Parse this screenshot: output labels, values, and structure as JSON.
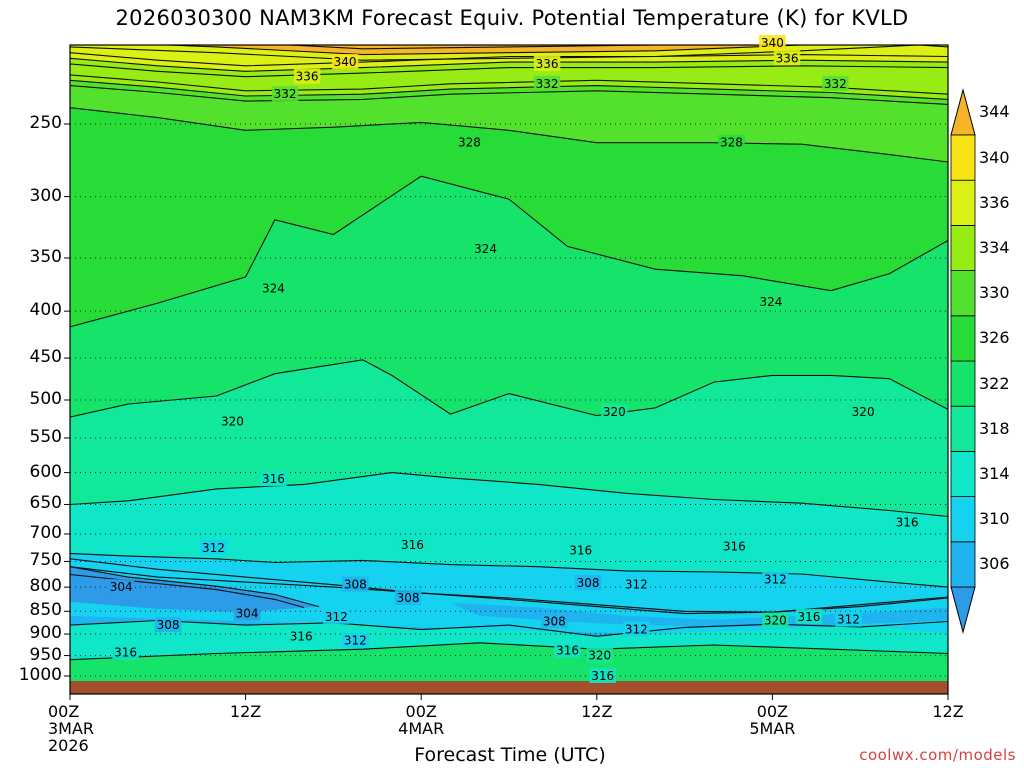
{
  "title": "2026030300 NAM3KM Forecast Equiv. Potential Temperature (K) for KVLD",
  "credit": "coolwx.com/models",
  "chart_data": {
    "type": "heatmap",
    "title": "2026030300 NAM3KM Forecast Equiv. Potential Temperature (K) for KVLD",
    "xlabel": "Forecast Time (UTC)",
    "ylabel": "",
    "x_ticks": [
      {
        "hour": 0,
        "label": "00Z",
        "sub1": "3MAR",
        "sub2": "2026"
      },
      {
        "hour": 12,
        "label": "12Z",
        "sub1": "",
        "sub2": ""
      },
      {
        "hour": 24,
        "label": "00Z",
        "sub1": "4MAR",
        "sub2": ""
      },
      {
        "hour": 36,
        "label": "12Z",
        "sub1": "",
        "sub2": ""
      },
      {
        "hour": 48,
        "label": "00Z",
        "sub1": "5MAR",
        "sub2": ""
      },
      {
        "hour": 60,
        "label": "12Z",
        "sub1": "",
        "sub2": ""
      }
    ],
    "x_range_hours": [
      0,
      60
    ],
    "y_ticks": [
      250,
      300,
      350,
      400,
      450,
      500,
      550,
      600,
      650,
      700,
      750,
      800,
      850,
      900,
      950,
      1000
    ],
    "y_range_hPa": [
      200,
      1025
    ],
    "y_scale": "log-pressure",
    "grid": "dotted horizontal at pressure ticks",
    "colorbar": {
      "ticks": [
        306,
        310,
        314,
        318,
        322,
        326,
        330,
        334,
        336,
        340,
        344
      ],
      "levels": [
        {
          "value": 304,
          "color": "#2d9be8"
        },
        {
          "value": 306,
          "color": "#1fb4ef"
        },
        {
          "value": 310,
          "color": "#14d2f0"
        },
        {
          "value": 314,
          "color": "#10e6c8"
        },
        {
          "value": 318,
          "color": "#12e89a"
        },
        {
          "value": 322,
          "color": "#16e46a"
        },
        {
          "value": 326,
          "color": "#28dc38"
        },
        {
          "value": 330,
          "color": "#52e22e"
        },
        {
          "value": 334,
          "color": "#98ec16"
        },
        {
          "value": 336,
          "color": "#dcf016"
        },
        {
          "value": 340,
          "color": "#f8e416"
        },
        {
          "value": 344,
          "color": "#f6b428"
        }
      ]
    },
    "contours": [
      {
        "value": 340,
        "p": [
          [
            0,
            203
          ],
          [
            10,
            206
          ],
          [
            20,
            210
          ],
          [
            30,
            209
          ],
          [
            40,
            208
          ],
          [
            50,
            205
          ],
          [
            58,
            202
          ],
          [
            60,
            203
          ]
        ]
      },
      {
        "value": 336,
        "p": [
          [
            0,
            212
          ],
          [
            6,
            216
          ],
          [
            12,
            219
          ],
          [
            20,
            217
          ],
          [
            30,
            214
          ],
          [
            40,
            214
          ],
          [
            50,
            213
          ],
          [
            60,
            214
          ]
        ]
      },
      {
        "value": 332,
        "p": [
          [
            0,
            224
          ],
          [
            6,
            228
          ],
          [
            12,
            233
          ],
          [
            20,
            232
          ],
          [
            26,
            229
          ],
          [
            36,
            227
          ],
          [
            44,
            229
          ],
          [
            52,
            231
          ],
          [
            60,
            235
          ]
        ]
      },
      {
        "value": 328,
        "p": [
          [
            0,
            240
          ],
          [
            6,
            246
          ],
          [
            12,
            254
          ],
          [
            18,
            252
          ],
          [
            24,
            249
          ],
          [
            30,
            254
          ],
          [
            36,
            262
          ],
          [
            44,
            262
          ],
          [
            50,
            263
          ],
          [
            56,
            270
          ],
          [
            60,
            275
          ]
        ]
      },
      {
        "value": 324,
        "p": [
          [
            0,
            416
          ],
          [
            6,
            392
          ],
          [
            12,
            367
          ],
          [
            14,
            318
          ],
          [
            18,
            330
          ],
          [
            24,
            285
          ],
          [
            30,
            302
          ],
          [
            34,
            340
          ],
          [
            40,
            360
          ],
          [
            46,
            366
          ],
          [
            52,
            380
          ],
          [
            56,
            364
          ],
          [
            60,
            335
          ]
        ]
      },
      {
        "value": 320,
        "p": [
          [
            0,
            522
          ],
          [
            4,
            505
          ],
          [
            10,
            495
          ],
          [
            14,
            468
          ],
          [
            20,
            452
          ],
          [
            22,
            470
          ],
          [
            26,
            518
          ],
          [
            30,
            492
          ],
          [
            36,
            520
          ],
          [
            40,
            510
          ],
          [
            44,
            478
          ],
          [
            48,
            470
          ],
          [
            52,
            470
          ],
          [
            56,
            474
          ],
          [
            60,
            512
          ]
        ]
      },
      {
        "value": 316,
        "p": [
          [
            0,
            650
          ],
          [
            4,
            644
          ],
          [
            10,
            625
          ],
          [
            16,
            618
          ],
          [
            22,
            600
          ],
          [
            26,
            608
          ],
          [
            32,
            618
          ],
          [
            38,
            632
          ],
          [
            44,
            642
          ],
          [
            50,
            648
          ],
          [
            56,
            660
          ],
          [
            60,
            670
          ]
        ]
      },
      {
        "value": 312,
        "p": [
          [
            0,
            735
          ],
          [
            4,
            740
          ],
          [
            10,
            745
          ],
          [
            14,
            752
          ],
          [
            20,
            748
          ],
          [
            26,
            756
          ],
          [
            32,
            760
          ],
          [
            38,
            768
          ],
          [
            44,
            770
          ],
          [
            50,
            774
          ],
          [
            56,
            790
          ],
          [
            60,
            800
          ]
        ]
      },
      {
        "value": 308,
        "p": [
          [
            0,
            760
          ],
          [
            6,
            780
          ],
          [
            12,
            790
          ],
          [
            18,
            800
          ],
          [
            24,
            812
          ],
          [
            30,
            822
          ],
          [
            36,
            836
          ],
          [
            42,
            850
          ],
          [
            48,
            852
          ],
          [
            54,
            836
          ],
          [
            60,
            820
          ]
        ]
      },
      {
        "value": 304,
        "p": [
          [
            0,
            775
          ],
          [
            5,
            790
          ],
          [
            10,
            805
          ],
          [
            14,
            825
          ],
          [
            16,
            842
          ]
        ]
      }
    ],
    "contour_labels": [
      {
        "value": 340,
        "x": 18.8,
        "p": 214
      },
      {
        "value": 340,
        "x": 48,
        "p": 204
      },
      {
        "value": 336,
        "x": 16.2,
        "p": 222
      },
      {
        "value": 336,
        "x": 32.6,
        "p": 215
      },
      {
        "value": 336,
        "x": 49,
        "p": 212
      },
      {
        "value": 332,
        "x": 14.7,
        "p": 232
      },
      {
        "value": 332,
        "x": 32.6,
        "p": 226
      },
      {
        "value": 332,
        "x": 52.3,
        "p": 226
      },
      {
        "value": 328,
        "x": 27.3,
        "p": 262
      },
      {
        "value": 328,
        "x": 45.2,
        "p": 262
      },
      {
        "value": 324,
        "x": 28.4,
        "p": 342
      },
      {
        "value": 324,
        "x": 13.9,
        "p": 378
      },
      {
        "value": 324,
        "x": 47.9,
        "p": 391
      },
      {
        "value": 320,
        "x": 11.1,
        "p": 528
      },
      {
        "value": 320,
        "x": 37.2,
        "p": 515
      },
      {
        "value": 320,
        "x": 54.2,
        "p": 515
      },
      {
        "value": 316,
        "x": 13.9,
        "p": 610
      },
      {
        "value": 316,
        "x": 57.2,
        "p": 680
      },
      {
        "value": 316,
        "x": 23.4,
        "p": 720
      },
      {
        "value": 316,
        "x": 34.9,
        "p": 730
      },
      {
        "value": 316,
        "x": 45.4,
        "p": 722
      },
      {
        "value": 312,
        "x": 9.8,
        "p": 725
      },
      {
        "value": 312,
        "x": 38.7,
        "p": 795
      },
      {
        "value": 312,
        "x": 48.2,
        "p": 785
      },
      {
        "value": 308,
        "x": 19.5,
        "p": 795
      },
      {
        "value": 308,
        "x": 23.1,
        "p": 822
      },
      {
        "value": 308,
        "x": 35.4,
        "p": 792
      },
      {
        "value": 304,
        "x": 3.5,
        "p": 800
      },
      {
        "value": 304,
        "x": 12.1,
        "p": 855
      },
      {
        "value": 312,
        "x": 18.2,
        "p": 862
      },
      {
        "value": 308,
        "x": 6.7,
        "p": 880
      },
      {
        "value": 316,
        "x": 15.8,
        "p": 905
      },
      {
        "value": 312,
        "x": 19.5,
        "p": 915
      },
      {
        "value": 308,
        "x": 33.1,
        "p": 872
      },
      {
        "value": 312,
        "x": 38.7,
        "p": 890
      },
      {
        "value": 320,
        "x": 48.2,
        "p": 870
      },
      {
        "value": 316,
        "x": 50.5,
        "p": 862
      },
      {
        "value": 312,
        "x": 53.2,
        "p": 868
      },
      {
        "value": 316,
        "x": 3.8,
        "p": 943
      },
      {
        "value": 316,
        "x": 34,
        "p": 938
      },
      {
        "value": 320,
        "x": 36.2,
        "p": 950
      },
      {
        "value": 316,
        "x": 36.4,
        "p": 1000
      }
    ]
  }
}
